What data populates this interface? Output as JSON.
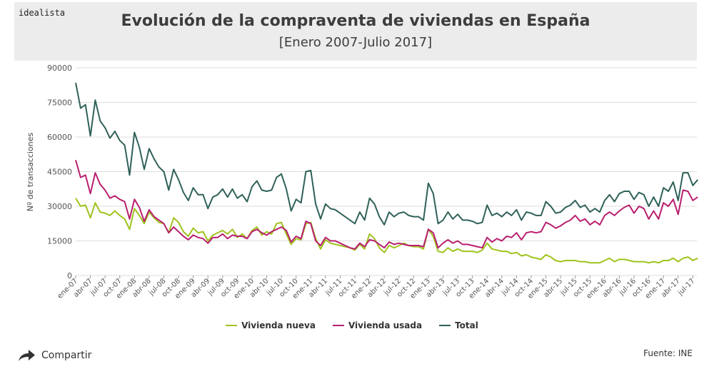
{
  "header": {
    "brand": "idealista",
    "title": "Evolución de la compraventa de viviendas en España",
    "subtitle": "[Enero 2007-Julio 2017]"
  },
  "footer": {
    "share_label": "Compartir",
    "source": "Fuente: INE"
  },
  "colors": {
    "nueva": "#9fc31d",
    "usada": "#b91f6f",
    "total": "#2f6159",
    "grid": "#dddddd",
    "axis_text": "#555555"
  },
  "chart_data": {
    "type": "line",
    "ylabel": "Nº de transacciones",
    "ylim": [
      0,
      90000
    ],
    "yticks": [
      0,
      15000,
      30000,
      45000,
      60000,
      75000,
      90000
    ],
    "ytick_labels": [
      "0",
      "15000",
      "30000",
      "45000",
      "60000",
      "75000",
      "90000"
    ],
    "grid": true,
    "legend_position": "bottom",
    "x_tick_labels": [
      "ene-07",
      "abr-07",
      "jul-07",
      "oct-07",
      "ene-08",
      "abr-08",
      "jul-08",
      "oct-08",
      "ene-09",
      "abr-09",
      "jul-09",
      "oct-09",
      "ene-10",
      "abr-10",
      "jul-10",
      "oct-10",
      "ene-11",
      "abr-11",
      "jul-11",
      "oct-11",
      "ene-12",
      "abr-12",
      "jul-12",
      "oct-12",
      "ene-13",
      "abr-13",
      "jul-13",
      "oct-13",
      "ene-14",
      "abr-14",
      "jul-14",
      "oct-14",
      "ene-15",
      "abr-15",
      "jul-15",
      "oct-15",
      "ene-16",
      "abr-16",
      "jul-16",
      "oct-16",
      "ene-17",
      "abr-17",
      "jul-17"
    ],
    "x_start": "ene-07",
    "x_end": "jul-17",
    "series": [
      {
        "name": "Vivienda nueva",
        "values": [
          33500,
          30000,
          30500,
          25000,
          31500,
          27500,
          27000,
          26000,
          28000,
          26000,
          24500,
          20000,
          29000,
          26000,
          22500,
          27500,
          25000,
          23000,
          22500,
          18500,
          25000,
          23000,
          19000,
          17000,
          20500,
          18500,
          19000,
          15000,
          17500,
          18500,
          19500,
          18000,
          20000,
          16500,
          18000,
          16000,
          19500,
          21000,
          17500,
          19000,
          18000,
          22500,
          23000,
          18000,
          13500,
          16000,
          15500,
          22500,
          23000,
          16000,
          11500,
          15500,
          14000,
          13500,
          13000,
          12500,
          12000,
          11000,
          13500,
          11500,
          18000,
          16000,
          12000,
          10000,
          13000,
          12000,
          13000,
          14000,
          13000,
          12500,
          12500,
          11500,
          20000,
          17000,
          10500,
          10000,
          12000,
          10500,
          11500,
          10500,
          10500,
          10500,
          10000,
          11000,
          14000,
          11500,
          11000,
          10500,
          10500,
          9500,
          10000,
          8500,
          9000,
          8000,
          7500,
          7000,
          9000,
          8000,
          6500,
          6000,
          6500,
          6500,
          6500,
          6000,
          6000,
          5500,
          5500,
          5500,
          6500,
          7500,
          6000,
          7000,
          7000,
          6500,
          6000,
          6000,
          6000,
          5500,
          6000,
          5500,
          6500,
          6500,
          7500,
          6000,
          7500,
          8000,
          6500,
          7500
        ]
      },
      {
        "name": "Vivienda usada",
        "values": [
          50000,
          42500,
          43500,
          35500,
          44500,
          39500,
          37000,
          33500,
          34500,
          33000,
          32000,
          24500,
          33000,
          29500,
          23500,
          28500,
          25500,
          24000,
          22500,
          18500,
          21000,
          19000,
          17000,
          15500,
          17500,
          16500,
          16000,
          14000,
          16500,
          16500,
          18000,
          16000,
          17500,
          17000,
          17000,
          16000,
          19000,
          20000,
          18500,
          17500,
          19000,
          20000,
          21000,
          19500,
          14500,
          17000,
          16000,
          23500,
          22500,
          15000,
          13000,
          16500,
          15000,
          15000,
          14000,
          13000,
          12000,
          11500,
          14000,
          12500,
          15500,
          15000,
          13500,
          12000,
          14500,
          13500,
          14000,
          13500,
          13000,
          13000,
          13000,
          12500,
          20000,
          18500,
          12000,
          14000,
          15500,
          14000,
          15000,
          13500,
          13500,
          13000,
          12500,
          12000,
          16500,
          14500,
          16000,
          15000,
          17000,
          16500,
          18500,
          15500,
          18500,
          19000,
          18500,
          19000,
          23000,
          22000,
          20500,
          21500,
          23000,
          24000,
          26000,
          23500,
          24500,
          22000,
          23500,
          22000,
          26000,
          27500,
          26000,
          28000,
          29500,
          30500,
          27000,
          30000,
          29000,
          24500,
          28000,
          24500,
          31500,
          30000,
          33000,
          26500,
          37000,
          36500,
          32500,
          34000
        ]
      },
      {
        "name": "Total",
        "values": [
          83500,
          72500,
          74000,
          60500,
          76000,
          67000,
          64000,
          59500,
          62500,
          58500,
          56500,
          43500,
          62000,
          55500,
          46000,
          55000,
          50500,
          47000,
          45000,
          37000,
          46000,
          41500,
          36000,
          32500,
          38000,
          35000,
          35000,
          29000,
          34000,
          35000,
          37500,
          34000,
          37500,
          33500,
          35000,
          32000,
          38500,
          41000,
          37000,
          36500,
          37000,
          42500,
          44000,
          37500,
          28000,
          33000,
          31500,
          45000,
          45500,
          31000,
          24500,
          31000,
          29000,
          28500,
          27000,
          25500,
          24000,
          22500,
          27500,
          24000,
          33500,
          31000,
          25500,
          22000,
          27500,
          25500,
          27000,
          27500,
          26000,
          25500,
          25500,
          24000,
          40000,
          35500,
          22500,
          24000,
          27500,
          24500,
          26500,
          24000,
          24000,
          23500,
          22500,
          23000,
          30500,
          26000,
          27000,
          25500,
          27500,
          26000,
          28500,
          24000,
          27500,
          27000,
          26000,
          26000,
          32000,
          30000,
          27000,
          27500,
          29500,
          30500,
          32500,
          29500,
          30500,
          27500,
          29000,
          27500,
          32500,
          35000,
          32000,
          35500,
          36500,
          36500,
          33000,
          36000,
          35000,
          30000,
          34000,
          30000,
          38000,
          36500,
          40500,
          32500,
          44500,
          44500,
          39000,
          41500
        ]
      }
    ]
  }
}
